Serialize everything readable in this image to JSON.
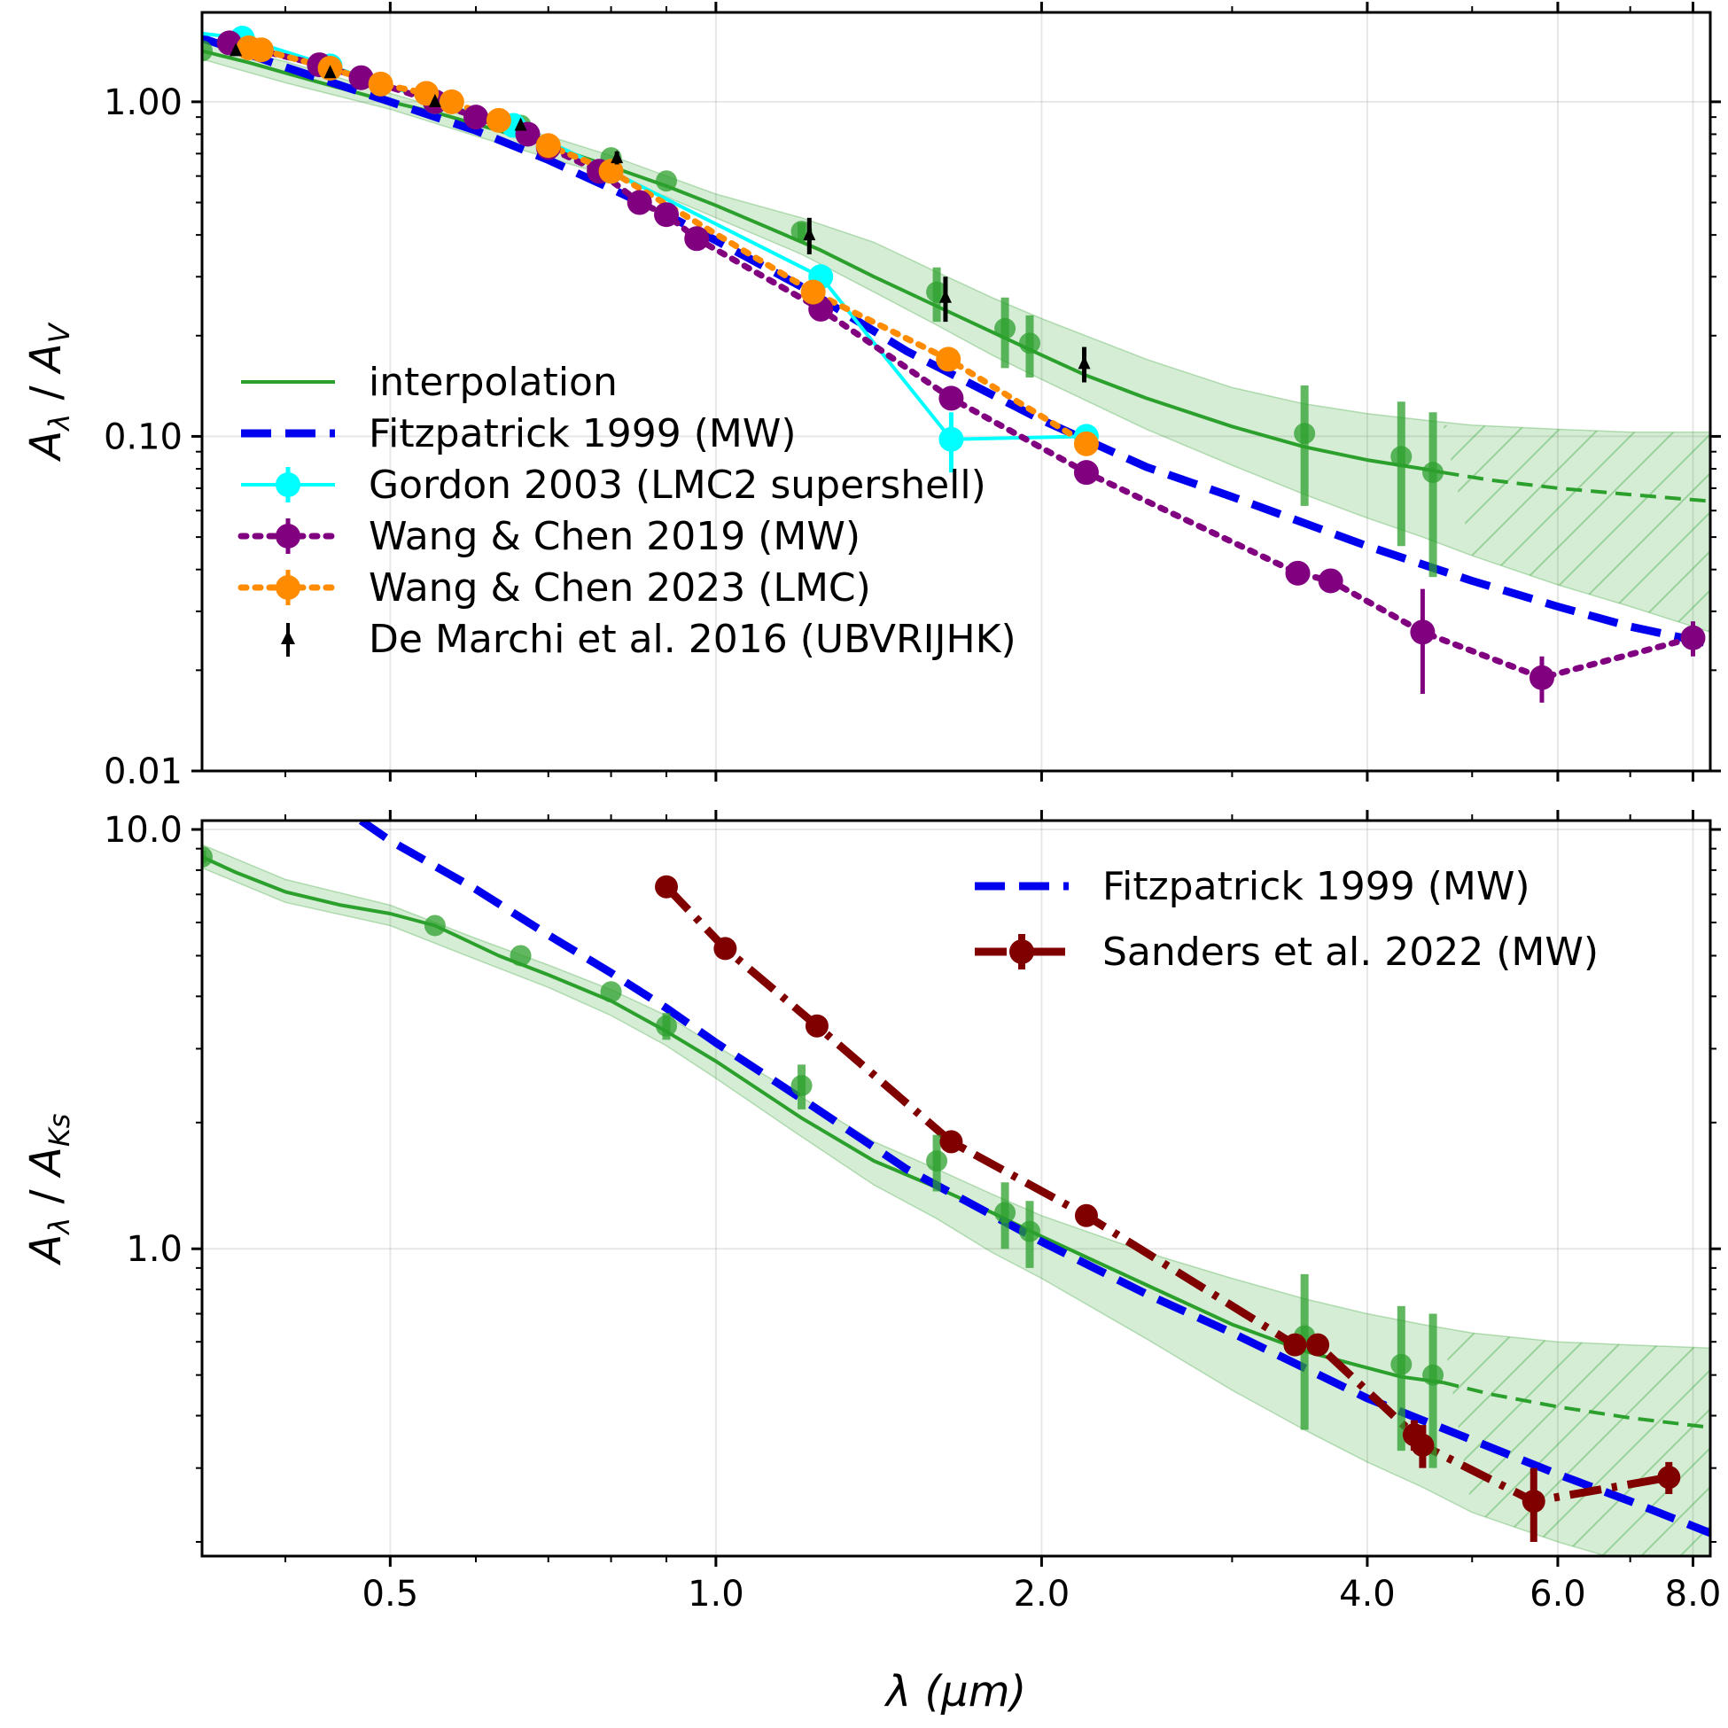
{
  "chart_data": {
    "type": "line",
    "xscale": "log",
    "xlabel": "λ (μm)",
    "xlim": [
      0.335,
      8.3
    ],
    "xticks": [
      0.5,
      1.0,
      2.0,
      4.0,
      6.0,
      8.0
    ],
    "xtick_labels": [
      "0.5",
      "1.0",
      "2.0",
      "4.0",
      "6.0",
      "8.0"
    ],
    "panels": [
      {
        "id": "top",
        "ylabel": "Aλ / AV",
        "ylabel_parts": {
          "main": "A",
          "sub1": "λ",
          "sep": " / ",
          "main2": "A",
          "sub2": "V"
        },
        "yscale": "log",
        "ylim": [
          0.01,
          1.85
        ],
        "yticks": [
          0.01,
          0.1,
          1.0
        ],
        "ytick_labels": [
          "0.01",
          "0.10",
          "1.00"
        ],
        "series": [
          {
            "name": "interpolation",
            "style": "line",
            "color": "#2ca02c",
            "x": [
              0.335,
              0.35,
              0.37,
              0.4,
              0.44,
              0.5,
              0.55,
              0.63,
              0.7,
              0.8,
              0.9,
              1.0,
              1.1,
              1.25,
              1.4,
              1.6,
              1.8,
              2.0,
              2.2,
              2.5,
              3.0,
              3.5,
              4.0,
              4.5,
              4.7
            ],
            "y": [
              1.42,
              1.37,
              1.31,
              1.22,
              1.12,
              1.0,
              0.93,
              0.82,
              0.74,
              0.64,
              0.56,
              0.49,
              0.43,
              0.36,
              0.3,
              0.245,
              0.205,
              0.175,
              0.152,
              0.13,
              0.107,
              0.093,
              0.085,
              0.08,
              0.078
            ]
          },
          {
            "name": "extrapolation",
            "style": "dashed",
            "color": "#2ca02c",
            "in_legend": false,
            "x": [
              4.7,
              5.2,
              6.0,
              7.0,
              8.3
            ],
            "y": [
              0.078,
              0.074,
              0.07,
              0.067,
              0.064
            ]
          },
          {
            "name": "Fitzpatrick 1999 (MW)",
            "style": "dashed",
            "color": "#0000ee",
            "x": [
              0.335,
              0.4,
              0.5,
              0.6,
              0.7,
              0.8,
              0.9,
              1.0,
              1.2,
              1.5,
              2.0,
              2.5,
              3.0,
              4.0,
              5.0,
              6.0,
              7.0,
              8.3
            ],
            "y": [
              1.55,
              1.27,
              1.0,
              0.82,
              0.67,
              0.55,
              0.46,
              0.385,
              0.28,
              0.18,
              0.112,
              0.081,
              0.066,
              0.047,
              0.037,
              0.031,
              0.027,
              0.024
            ]
          },
          {
            "name": "Gordon 2003 (LMC2 supershell)",
            "style": "solid-markers",
            "color": "#00ffff",
            "x": [
              0.335,
              0.365,
              0.44,
              0.55,
              0.65,
              0.8,
              1.25,
              1.65,
              2.2
            ],
            "y": [
              1.6,
              1.55,
              1.28,
              1.0,
              0.85,
              0.62,
              0.3,
              0.098,
              0.1
            ],
            "marker_from": 1,
            "err": [
              0,
              0,
              0,
              0,
              0,
              0,
              0,
              0.02,
              0
            ]
          },
          {
            "name": "Wang & Chen 2019 (MW)",
            "style": "dotted",
            "color": "#800080",
            "x": [
              0.355,
              0.43,
              0.47,
              0.55,
              0.6,
              0.67,
              0.7,
              0.78,
              0.85,
              0.9,
              0.96,
              1.25,
              1.65,
              2.2,
              3.45,
              3.7,
              4.5,
              5.8,
              8.0
            ],
            "y": [
              1.5,
              1.29,
              1.18,
              1.0,
              0.9,
              0.8,
              0.73,
              0.62,
              0.5,
              0.46,
              0.39,
              0.24,
              0.13,
              0.078,
              0.039,
              0.037,
              0.026,
              0.019,
              0.025
            ],
            "err": [
              0,
              0,
              0,
              0,
              0,
              0,
              0,
              0,
              0,
              0,
              0,
              0,
              0,
              0,
              0.003,
              0,
              0.009,
              0.003,
              0.003
            ]
          },
          {
            "name": "Wang & Chen 2023 (LMC)",
            "style": "dotted",
            "color": "#ff8c00",
            "x": [
              0.37,
              0.38,
              0.44,
              0.49,
              0.54,
              0.57,
              0.63,
              0.7,
              0.8,
              1.23,
              1.64,
              2.2
            ],
            "y": [
              1.45,
              1.43,
              1.26,
              1.13,
              1.06,
              1.0,
              0.88,
              0.74,
              0.62,
              0.27,
              0.17,
              0.095
            ]
          },
          {
            "name": "De Marchi et al. 2016 (UBVRIJHK)",
            "style": "arrow-markers",
            "color": "#000000",
            "x": [
              0.36,
              0.44,
              0.55,
              0.66,
              0.81,
              1.22,
              1.63,
              2.19
            ],
            "y": [
              1.42,
              1.22,
              1.0,
              0.85,
              0.68,
              0.4,
              0.26,
              0.165
            ],
            "err": [
              0.03,
              0.03,
              0.02,
              0.02,
              0.03,
              0.05,
              0.04,
              0.02
            ]
          }
        ],
        "green_points": {
          "x": [
            0.335,
            0.55,
            0.66,
            0.8,
            0.9,
            1.2,
            1.6,
            1.85,
            1.95,
            3.5,
            4.3,
            4.6
          ],
          "y": [
            1.42,
            1.0,
            0.85,
            0.68,
            0.58,
            0.41,
            0.27,
            0.21,
            0.19,
            0.102,
            0.087,
            0.078
          ],
          "err": [
            0,
            0,
            0,
            0,
            0,
            0.025,
            0.05,
            0.05,
            0.04,
            0.04,
            0.04,
            0.04
          ]
        },
        "band": {
          "x": [
            0.335,
            0.4,
            0.5,
            0.6,
            0.7,
            0.8,
            0.9,
            1.0,
            1.2,
            1.4,
            1.6,
            1.8,
            2.0,
            2.5,
            3.0,
            3.5,
            4.0,
            4.5,
            5.0,
            6.0,
            7.0,
            8.3
          ],
          "lower": [
            1.34,
            1.14,
            0.95,
            0.79,
            0.68,
            0.6,
            0.52,
            0.45,
            0.35,
            0.27,
            0.215,
            0.175,
            0.148,
            0.105,
            0.082,
            0.067,
            0.057,
            0.05,
            0.044,
            0.036,
            0.031,
            0.026
          ],
          "upper": [
            1.5,
            1.32,
            1.06,
            0.89,
            0.79,
            0.69,
            0.6,
            0.53,
            0.45,
            0.38,
            0.31,
            0.26,
            0.225,
            0.17,
            0.14,
            0.125,
            0.117,
            0.112,
            0.108,
            0.105,
            0.103,
            0.103
          ],
          "hatch_from": 4.7
        },
        "legend": {
          "placement": "center-left",
          "entries": [
            "interpolation",
            "Fitzpatrick 1999 (MW)",
            "Gordon 2003 (LMC2 supershell)",
            "Wang & Chen 2019 (MW)",
            "Wang & Chen 2023 (LMC)",
            "De Marchi et al. 2016 (UBVRIJHK)"
          ]
        }
      },
      {
        "id": "bottom",
        "ylabel": "Aλ / AKs",
        "ylabel_parts": {
          "main": "A",
          "sub1": "λ",
          "sep": " / ",
          "main2": "A",
          "sub2": "Ks"
        },
        "yscale": "log",
        "ylim": [
          0.185,
          10.5
        ],
        "yticks": [
          1.0,
          10.0
        ],
        "ytick_labels": [
          "1.0",
          "10.0"
        ],
        "series": [
          {
            "name": "interpolation",
            "style": "line",
            "color": "#2ca02c",
            "in_legend": false,
            "x": [
              0.335,
              0.36,
              0.4,
              0.45,
              0.5,
              0.55,
              0.63,
              0.7,
              0.8,
              0.9,
              1.0,
              1.2,
              1.4,
              1.6,
              1.8,
              2.0,
              2.5,
              3.0,
              3.5,
              4.0,
              4.3,
              4.7
            ],
            "y": [
              8.6,
              7.9,
              7.1,
              6.6,
              6.3,
              5.9,
              5.0,
              4.5,
              3.9,
              3.3,
              2.8,
              2.05,
              1.62,
              1.4,
              1.22,
              1.07,
              0.82,
              0.66,
              0.57,
              0.52,
              0.495,
              0.48
            ]
          },
          {
            "name": "extrapolation",
            "style": "dashed",
            "color": "#2ca02c",
            "in_legend": false,
            "x": [
              4.7,
              5.2,
              6.0,
              7.0,
              8.3
            ],
            "y": [
              0.48,
              0.45,
              0.42,
              0.395,
              0.375
            ]
          },
          {
            "name": "Fitzpatrick 1999 (MW)",
            "style": "dashed",
            "color": "#0000ee",
            "x": [
              0.47,
              0.5,
              0.6,
              0.7,
              0.8,
              0.9,
              1.0,
              1.2,
              1.5,
              2.0,
              2.5,
              3.0,
              4.0,
              5.0,
              6.0,
              7.0,
              8.3
            ],
            "y": [
              10.5,
              9.4,
              7.2,
              5.6,
              4.55,
              3.75,
              3.1,
              2.28,
              1.55,
              1.04,
              0.78,
              0.63,
              0.44,
              0.35,
              0.29,
              0.25,
              0.21
            ]
          },
          {
            "name": "Sanders et al. 2022 (MW)",
            "style": "dashdot",
            "color": "#800000",
            "x": [
              0.9,
              1.02,
              1.24,
              1.65,
              2.2,
              3.43,
              3.6,
              4.42,
              4.5,
              5.7,
              7.6
            ],
            "y": [
              7.3,
              5.2,
              3.4,
              1.8,
              1.2,
              0.59,
              0.59,
              0.36,
              0.34,
              0.25,
              0.285
            ],
            "err": [
              0,
              0,
              0,
              0,
              0,
              0.02,
              0.03,
              0.03,
              0.04,
              0.05,
              0.025
            ]
          }
        ],
        "green_points": {
          "x": [
            0.335,
            0.55,
            0.66,
            0.8,
            0.9,
            1.2,
            1.6,
            1.85,
            1.95,
            3.5,
            4.3,
            4.6
          ],
          "y": [
            8.6,
            5.9,
            5.0,
            4.1,
            3.4,
            2.45,
            1.62,
            1.22,
            1.1,
            0.62,
            0.53,
            0.5
          ],
          "err": [
            0.3,
            0,
            0,
            0,
            0.25,
            0.3,
            0.25,
            0.22,
            0.2,
            0.25,
            0.2,
            0.2
          ]
        },
        "band": {
          "x": [
            0.335,
            0.4,
            0.5,
            0.6,
            0.7,
            0.8,
            0.9,
            1.0,
            1.2,
            1.4,
            1.6,
            1.8,
            2.0,
            2.5,
            3.0,
            3.5,
            4.0,
            4.5,
            5.0,
            6.0,
            7.0,
            8.3
          ],
          "lower": [
            8.1,
            6.7,
            5.9,
            4.9,
            4.2,
            3.6,
            3.05,
            2.55,
            1.85,
            1.42,
            1.18,
            0.98,
            0.85,
            0.61,
            0.46,
            0.37,
            0.31,
            0.27,
            0.235,
            0.2,
            0.178,
            0.16
          ],
          "upper": [
            9.2,
            7.6,
            6.6,
            5.5,
            4.75,
            4.15,
            3.6,
            3.05,
            2.3,
            1.8,
            1.55,
            1.35,
            1.2,
            0.98,
            0.85,
            0.76,
            0.7,
            0.66,
            0.63,
            0.6,
            0.59,
            0.58
          ],
          "hatch_from": 4.7
        },
        "legend": {
          "placement": "top-right",
          "entries": [
            "Fitzpatrick 1999 (MW)",
            "Sanders et al. 2022 (MW)"
          ]
        }
      }
    ]
  }
}
